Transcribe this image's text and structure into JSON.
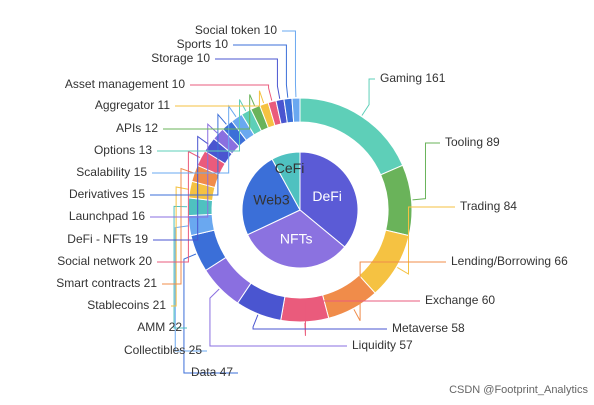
{
  "chart_data": {
    "type": "pie",
    "inner": {
      "categories": [
        "DeFi",
        "NFTs",
        "Web3",
        "CeFi"
      ],
      "values": [
        36,
        32,
        24,
        8
      ],
      "colors": [
        "#5b5bd6",
        "#8b72e0",
        "#3b6fd8",
        "#4fc1c0"
      ]
    },
    "outer": {
      "categories": [
        "Gaming",
        "Tooling",
        "Trading",
        "Lending/Borrowing",
        "Exchange",
        "Metaverse",
        "Liquidity",
        "Data",
        "Collectibles",
        "AMM",
        "Stablecoins",
        "Smart contracts",
        "Social network",
        "DeFi - NFTs",
        "Launchpad",
        "Derivatives",
        "Scalability",
        "Options",
        "APIs",
        "Aggregator",
        "Asset management",
        "Storage",
        "Sports",
        "Social token"
      ],
      "values": [
        161,
        89,
        84,
        66,
        60,
        58,
        57,
        47,
        25,
        22,
        21,
        21,
        20,
        19,
        16,
        15,
        15,
        13,
        12,
        11,
        10,
        10,
        10,
        10
      ],
      "colors": [
        "#5ecfb8",
        "#6ab35a",
        "#f5c242",
        "#f08c4a",
        "#ea5b7c",
        "#4a55d0",
        "#8a6fe0",
        "#3b6fd8",
        "#6aa8f0",
        "#4fc1c0",
        "#f5c242",
        "#f08c4a",
        "#ea5b7c",
        "#4a55d0",
        "#8a6fe0",
        "#3b6fd8",
        "#6aa8f0",
        "#5ecfb8",
        "#6ab35a",
        "#f5c242",
        "#ea5b7c",
        "#4a55d0",
        "#3b6fd8",
        "#6aa8f0"
      ]
    },
    "watermark": "CSDN @Footprint_Analytics"
  }
}
